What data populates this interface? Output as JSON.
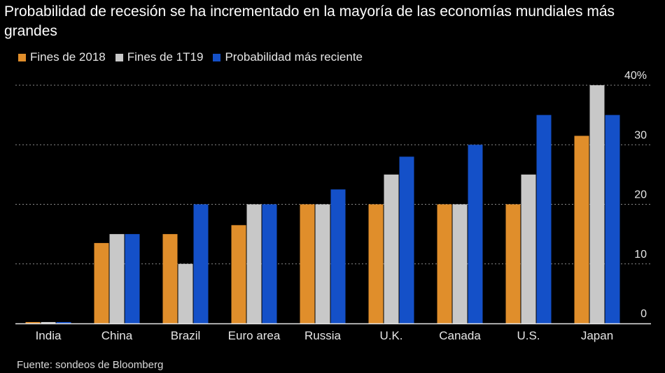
{
  "chart_data": {
    "type": "bar",
    "title": "Probabilidad de recesión se ha incrementado en la mayoría de las economías mundiales más grandes",
    "categories": [
      "India",
      "China",
      "Brazil",
      "Euro area",
      "Russia",
      "U.K.",
      "Canada",
      "U.S.",
      "Japan"
    ],
    "series": [
      {
        "name": "Fines de 2018",
        "color": "#e08e2b",
        "values": [
          0,
          13.5,
          15,
          16.5,
          20,
          20,
          20,
          20,
          31.5
        ]
      },
      {
        "name": "Fines de 1T19",
        "color": "#c8c8c8",
        "values": [
          0,
          15,
          10,
          20,
          20,
          25,
          20,
          25,
          40
        ]
      },
      {
        "name": "Probabilidad más reciente",
        "color": "#1450c8",
        "values": [
          0,
          15,
          20,
          20,
          22.5,
          28,
          30,
          35,
          35
        ]
      }
    ],
    "ylim": [
      0,
      40
    ],
    "yticks": [
      0,
      10,
      20,
      30,
      40
    ],
    "ytick_labels": [
      "0",
      "10",
      "20",
      "30",
      "40%"
    ],
    "xlabel": "",
    "ylabel": "",
    "grid": true,
    "legend": "top-left"
  },
  "source": "Fuente: sondeos de Bloomberg"
}
